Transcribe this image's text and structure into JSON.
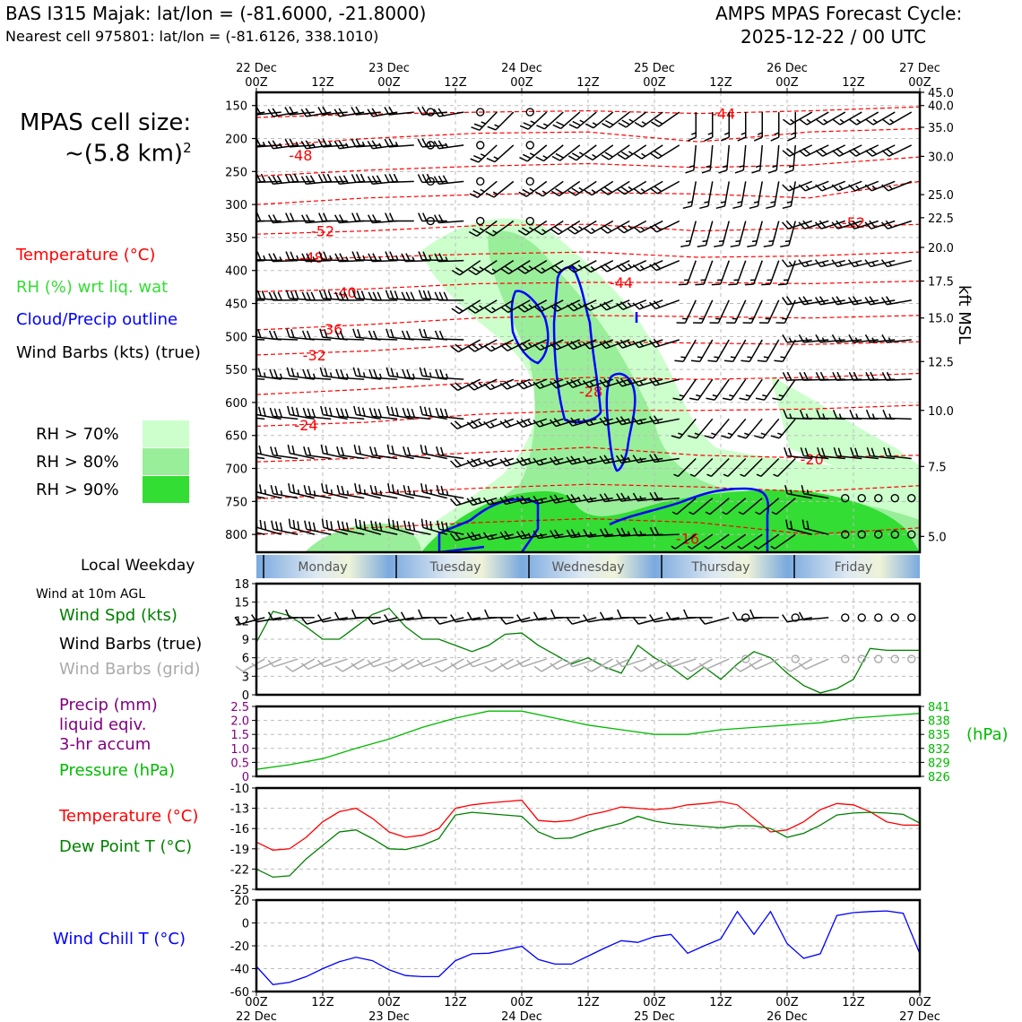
{
  "header": {
    "station": "BAS I315 Majak: lat/lon = (-81.6000, -21.8000)",
    "nearest": "Nearest cell 975801: lat/lon = (-81.6126, 338.1010)",
    "model": "AMPS MPAS Forecast Cycle:",
    "cycle": "2025-12-22 / 00 UTC"
  },
  "left_panel": {
    "cell_size_line1": "MPAS cell size:",
    "cell_size_line2": "~(5.8 km)",
    "cell_size_sup": "2",
    "legend_temperature": "Temperature (°C)",
    "legend_rh": "RH (%) wrt liq. wat",
    "legend_cloud": "Cloud/Precip outline",
    "legend_wind": "Wind Barbs (kts) (true)",
    "rh_70": "RH > 70%",
    "rh_80": "RH > 80%",
    "rh_90": "RH > 90%",
    "weekday_label": "Local Weekday",
    "wind10m_label": "Wind at 10m AGL",
    "wind_spd_label": "Wind Spd (kts)",
    "wind_barbs_true": "Wind Barbs (true)",
    "wind_barbs_grid": "Wind Barbs (grid)",
    "precip_1": "Precip (mm)",
    "precip_2": "liquid eqiv.",
    "precip_3": "3-hr accum",
    "pressure_label": "Pressure (hPa)",
    "temp_label": "Temperature (°C)",
    "dew_label": "Dew Point T (°C)",
    "windchill_label": "Wind Chill T (°C)",
    "hpa_right": "(hPa)",
    "kft_label": "kft MSL"
  },
  "colors": {
    "temperature": "#ff0000",
    "rh_legend": "#33dd33",
    "cloud": "#0000ff",
    "rh70": "#ccffcc",
    "rh80": "#99ee99",
    "rh90": "#33dd33",
    "wind_spd": "#008000",
    "grid_barbs": "#aaaaaa",
    "precip": "#800080",
    "pressure": "#00bb00",
    "dewpoint": "#008000",
    "windchill": "#0000ff"
  },
  "time_axis": {
    "top_dates": [
      "22 Dec",
      "",
      "23 Dec",
      "",
      "24 Dec",
      "",
      "25 Dec",
      "",
      "26 Dec",
      "",
      "27 Dec"
    ],
    "top_hours": [
      "00Z",
      "12Z",
      "00Z",
      "12Z",
      "00Z",
      "12Z",
      "00Z",
      "12Z",
      "00Z",
      "12Z",
      "00Z"
    ],
    "bottom_hours": [
      "00Z",
      "12Z",
      "00Z",
      "12Z",
      "00Z",
      "12Z",
      "00Z",
      "12Z",
      "00Z",
      "12Z",
      "00Z"
    ],
    "bottom_dates": [
      "22 Dec",
      "",
      "23 Dec",
      "",
      "24 Dec",
      "",
      "25 Dec",
      "",
      "26 Dec",
      "",
      "27 Dec"
    ],
    "weekdays": [
      "Monday",
      "Tuesday",
      "Wednesday",
      "Thursday",
      "Friday"
    ]
  },
  "chart_data": [
    {
      "type": "heatmap",
      "name": "cross-section",
      "x_hours": [
        0,
        120
      ],
      "pressure_ticks": [
        150,
        200,
        250,
        300,
        350,
        400,
        450,
        500,
        550,
        600,
        650,
        700,
        750,
        800
      ],
      "kft_ticks": [
        "45.0",
        "40.0",
        "35.0",
        "30.0",
        "25.0",
        "22.5",
        "20.0",
        "17.5",
        "15.0",
        "12.5",
        "10.0",
        "7.5",
        "5.0"
      ],
      "kft_pressures": [
        130,
        150,
        183,
        227,
        285,
        320,
        365,
        416,
        472,
        538,
        612,
        697,
        803
      ],
      "temperature_labels": [
        {
          "text": "-48",
          "hour": 8,
          "p": 225
        },
        {
          "text": "-52",
          "hour": 12,
          "p": 340
        },
        {
          "text": "-48",
          "hour": 10,
          "p": 380
        },
        {
          "text": "-40",
          "hour": 16,
          "p": 433
        },
        {
          "text": "-36",
          "hour": 13.5,
          "p": 489
        },
        {
          "text": "-32",
          "hour": 10.5,
          "p": 528
        },
        {
          "text": "-24",
          "hour": 9,
          "p": 634
        },
        {
          "text": "-28",
          "hour": 60.5,
          "p": 583
        },
        {
          "text": "-44",
          "hour": 66,
          "p": 418
        },
        {
          "text": "-44",
          "hour": 84.5,
          "p": 162
        },
        {
          "text": "-52",
          "hour": 108,
          "p": 327
        },
        {
          "text": "-20",
          "hour": 100.5,
          "p": 686
        },
        {
          "text": "-16",
          "hour": 78,
          "p": 806
        }
      ],
      "wind_rows_p": [
        160,
        210,
        265,
        325,
        385,
        445,
        505,
        565,
        625,
        685,
        745,
        800
      ]
    },
    {
      "type": "line",
      "name": "wind-speed",
      "x_hours": [
        0,
        3,
        6,
        9,
        12,
        15,
        18,
        21,
        24,
        27,
        30,
        33,
        36,
        39,
        42,
        45,
        48,
        51,
        54,
        57,
        60,
        63,
        66,
        69,
        72,
        75,
        78,
        81,
        84,
        87,
        90,
        93,
        96,
        99,
        102,
        105,
        108,
        111,
        114,
        117,
        120
      ],
      "values": [
        8.5,
        13.5,
        12.8,
        11,
        9,
        9,
        11,
        13,
        14,
        11,
        9,
        9,
        8,
        7,
        8,
        9.8,
        10,
        8,
        6.5,
        5,
        6,
        4.5,
        3.5,
        8,
        6,
        4.5,
        2.5,
        4.5,
        2.5,
        5,
        7,
        6,
        3.5,
        1.5,
        0.3,
        1,
        2.5,
        7.5,
        7.2,
        7.2,
        7.2
      ],
      "ylim": [
        0,
        18
      ],
      "yticks": [
        "0",
        "3",
        "6",
        "9",
        "12",
        "15",
        "18"
      ]
    },
    {
      "type": "line",
      "name": "precip-pressure",
      "pressure_x_hours": [
        0,
        6,
        12,
        18,
        24,
        30,
        36,
        42,
        48,
        54,
        60,
        66,
        72,
        78,
        84,
        90,
        96,
        102,
        108,
        114,
        120
      ],
      "pressure_values": [
        827.5,
        828.5,
        829.8,
        832,
        834,
        836.5,
        838.5,
        840,
        840,
        838.5,
        837,
        836,
        835,
        835,
        836,
        836.5,
        837,
        837.5,
        838.5,
        839,
        839.5
      ],
      "precip_values": [],
      "precip_yticks": [
        "0",
        "0.5",
        "1.0",
        "1.5",
        "2.0",
        "2.5"
      ],
      "pressure_yticks": [
        "826",
        "829",
        "832",
        "835",
        "838",
        "841"
      ],
      "precip_ylim": [
        0,
        2.5
      ],
      "pressure_ylim": [
        826,
        841
      ]
    },
    {
      "type": "line",
      "name": "temperature-dewpoint",
      "x_hours": [
        0,
        3,
        6,
        9,
        12,
        15,
        18,
        21,
        24,
        27,
        30,
        33,
        36,
        39,
        42,
        45,
        48,
        51,
        54,
        57,
        60,
        63,
        66,
        69,
        72,
        75,
        78,
        81,
        84,
        87,
        90,
        93,
        96,
        99,
        102,
        105,
        108,
        111,
        114,
        117,
        120
      ],
      "temperature": [
        -18,
        -19.2,
        -19,
        -17.3,
        -15,
        -13.5,
        -13,
        -14.5,
        -16.5,
        -17.3,
        -17,
        -16,
        -13,
        -12.5,
        -12.2,
        -12,
        -11.8,
        -14.8,
        -15,
        -14.8,
        -14,
        -13.5,
        -12.8,
        -13,
        -13.2,
        -13,
        -12.5,
        -12.3,
        -12,
        -12.5,
        -14.5,
        -16.5,
        -16.2,
        -15,
        -13.2,
        -12.3,
        -12.5,
        -13.5,
        -15,
        -15.5,
        -15.5
      ],
      "dewpoint": [
        -22,
        -23.2,
        -23,
        -20.5,
        -18.5,
        -16.5,
        -16.2,
        -17.5,
        -19,
        -19.1,
        -18.5,
        -17.5,
        -14,
        -13.6,
        -13.8,
        -14,
        -14.2,
        -16.5,
        -17.5,
        -17.4,
        -16.5,
        -15.8,
        -15.2,
        -14.2,
        -14.9,
        -15.3,
        -15.5,
        -15.7,
        -15.9,
        -15.6,
        -15.6,
        -16,
        -17.3,
        -16.7,
        -15.5,
        -14,
        -13.7,
        -13.6,
        -13.7,
        -13.9,
        -15.2
      ],
      "ylim": [
        -25,
        -10
      ],
      "yticks": [
        "-25",
        "-22",
        "-19",
        "-16",
        "-13",
        "-10"
      ]
    },
    {
      "type": "line",
      "name": "wind-chill",
      "x_hours": [
        0,
        3,
        6,
        9,
        12,
        15,
        18,
        21,
        24,
        27,
        30,
        33,
        36,
        39,
        42,
        45,
        48,
        51,
        54,
        57,
        60,
        63,
        66,
        69,
        72,
        75,
        78,
        81,
        84,
        87,
        90,
        93,
        96,
        99,
        102,
        105,
        108,
        111,
        114,
        117,
        120
      ],
      "values": [
        -38,
        -54,
        -52,
        -47,
        -40,
        -34,
        -30,
        -33,
        -41,
        -46,
        -47,
        -47,
        -33,
        -27,
        -26.5,
        -23.5,
        -20.5,
        -32,
        -36,
        -36,
        -29,
        -22,
        -15.5,
        -17,
        -12,
        -10,
        -26.5,
        -20,
        -14,
        10,
        -10,
        10,
        -18,
        -31,
        -27,
        6.5,
        9,
        10,
        10.5,
        8.5,
        -27
      ],
      "ylim": [
        -60,
        20
      ],
      "yticks": [
        "-60",
        "-40",
        "-20",
        "0",
        "20"
      ]
    }
  ]
}
